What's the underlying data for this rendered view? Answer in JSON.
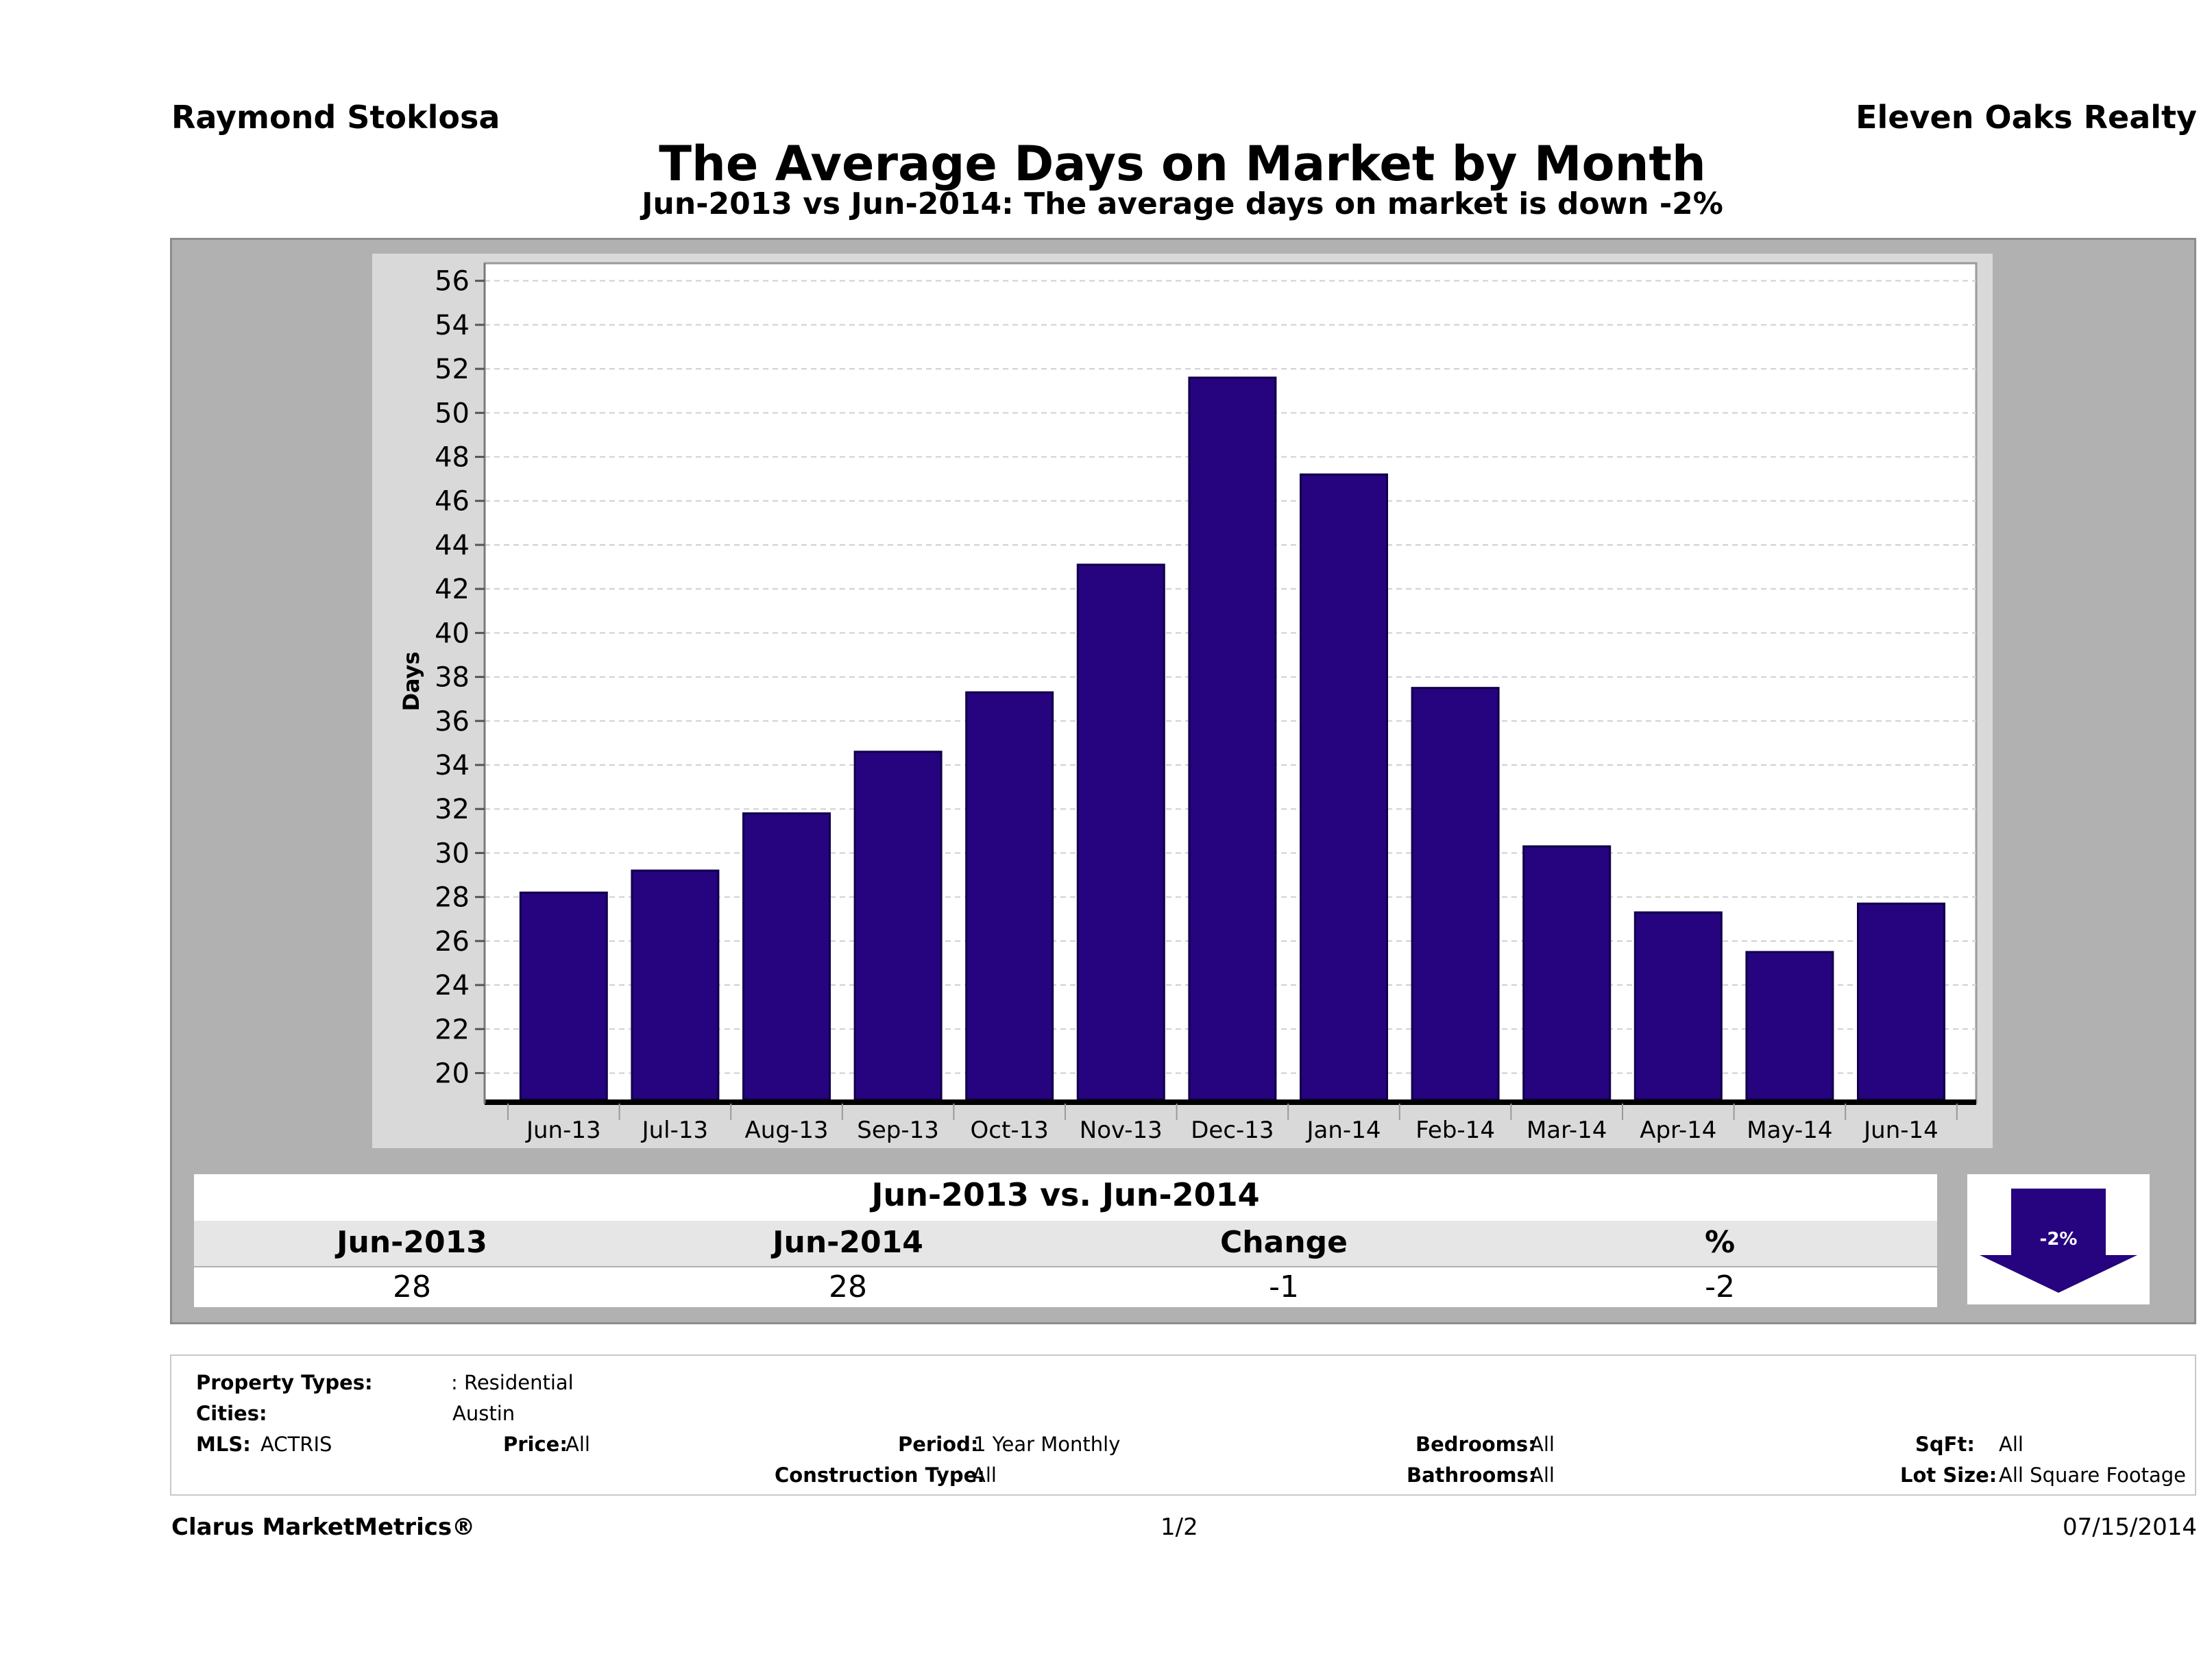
{
  "header": {
    "agent": "Raymond Stoklosa",
    "company": "Eleven Oaks Realty",
    "title": "The Average Days on Market by Month",
    "subtitle": "Jun-2013 vs Jun-2014: The average days on market is down -2%"
  },
  "chart_data": {
    "type": "bar",
    "categories": [
      "Jun-13",
      "Jul-13",
      "Aug-13",
      "Sep-13",
      "Oct-13",
      "Nov-13",
      "Dec-13",
      "Jan-14",
      "Feb-14",
      "Mar-14",
      "Apr-14",
      "May-14",
      "Jun-14"
    ],
    "values": [
      28.2,
      29.2,
      31.8,
      34.6,
      37.3,
      43.1,
      51.6,
      47.2,
      37.5,
      30.3,
      27.3,
      25.5,
      27.7
    ],
    "ylabel": "Days",
    "xlabel": "",
    "ylim": [
      18.8,
      56.8
    ],
    "yticks": [
      20,
      22,
      24,
      26,
      28,
      30,
      32,
      34,
      36,
      38,
      40,
      42,
      44,
      46,
      48,
      50,
      52,
      54,
      56
    ],
    "grid": true,
    "bar_color": "#26037f"
  },
  "comparison": {
    "title": "Jun-2013 vs. Jun-2014",
    "headers": [
      "Jun-2013",
      "Jun-2014",
      "Change",
      "%"
    ],
    "values": [
      "28",
      "28",
      "-1",
      "-2"
    ],
    "badge": "-2%",
    "direction": "down"
  },
  "info": {
    "property_types_label": "Property Types:",
    "property_types_value": ": Residential",
    "cities_label": "Cities:",
    "cities_value": "Austin",
    "mls_label": "MLS:",
    "mls_value": "ACTRIS",
    "price_label": "Price:",
    "price_value": "All",
    "period_label": "Period:",
    "period_value": "1 Year Monthly",
    "construction_label": "Construction Type:",
    "construction_value": "All",
    "bedrooms_label": "Bedrooms:",
    "bedrooms_value": "All",
    "bathrooms_label": "Bathrooms:",
    "bathrooms_value": "All",
    "sqft_label": "SqFt:",
    "sqft_value": "All",
    "lotsize_label": "Lot Size:",
    "lotsize_value": "All Square Footage"
  },
  "footer": {
    "brand": "Clarus MarketMetrics®",
    "page": "1/2",
    "date": "07/15/2014"
  }
}
